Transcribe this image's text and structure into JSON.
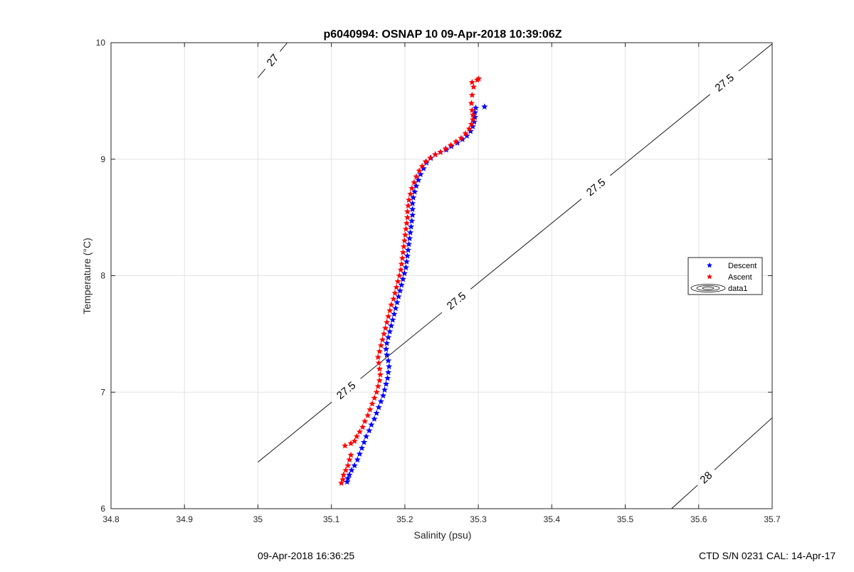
{
  "chart_data": {
    "type": "scatter",
    "title": "p6040994: OSNAP 10 09-Apr-2018 10:39:06Z",
    "xlabel": "Salinity (psu)",
    "ylabel": "Temperature (°C)",
    "xlim": [
      34.8,
      35.7
    ],
    "ylim": [
      6,
      10
    ],
    "xticks": [
      34.8,
      34.9,
      35,
      35.1,
      35.2,
      35.3,
      35.4,
      35.5,
      35.6,
      35.7
    ],
    "yticks": [
      6,
      7,
      8,
      9,
      10
    ],
    "grid": true,
    "legend_position": "right",
    "series": [
      {
        "name": "Descent",
        "color": "#0000ff",
        "marker": "pentagram",
        "points": [
          [
            35.12,
            6.23
          ],
          [
            35.121,
            6.26
          ],
          [
            35.123,
            6.29
          ],
          [
            35.126,
            6.33
          ],
          [
            35.13,
            6.37
          ],
          [
            35.134,
            6.42
          ],
          [
            35.137,
            6.47
          ],
          [
            35.14,
            6.52
          ],
          [
            35.143,
            6.57
          ],
          [
            35.146,
            6.62
          ],
          [
            35.15,
            6.67
          ],
          [
            35.153,
            6.72
          ],
          [
            35.157,
            6.77
          ],
          [
            35.16,
            6.82
          ],
          [
            35.163,
            6.87
          ],
          [
            35.166,
            6.92
          ],
          [
            35.169,
            6.97
          ],
          [
            35.171,
            7.02
          ],
          [
            35.173,
            7.07
          ],
          [
            35.175,
            7.12
          ],
          [
            35.176,
            7.17
          ],
          [
            35.177,
            7.22
          ],
          [
            35.176,
            7.27
          ],
          [
            35.174,
            7.32
          ],
          [
            35.173,
            7.37
          ],
          [
            35.174,
            7.42
          ],
          [
            35.176,
            7.47
          ],
          [
            35.178,
            7.52
          ],
          [
            35.18,
            7.57
          ],
          [
            35.182,
            7.62
          ],
          [
            35.184,
            7.67
          ],
          [
            35.186,
            7.72
          ],
          [
            35.188,
            7.77
          ],
          [
            35.19,
            7.82
          ],
          [
            35.192,
            7.87
          ],
          [
            35.194,
            7.92
          ],
          [
            35.196,
            7.97
          ],
          [
            35.198,
            8.02
          ],
          [
            35.2,
            8.07
          ],
          [
            35.201,
            8.12
          ],
          [
            35.202,
            8.17
          ],
          [
            35.203,
            8.22
          ],
          [
            35.204,
            8.27
          ],
          [
            35.205,
            8.32
          ],
          [
            35.206,
            8.37
          ],
          [
            35.207,
            8.42
          ],
          [
            35.208,
            8.47
          ],
          [
            35.209,
            8.52
          ],
          [
            35.209,
            8.57
          ],
          [
            35.209,
            8.62
          ],
          [
            35.21,
            8.67
          ],
          [
            35.212,
            8.72
          ],
          [
            35.214,
            8.77
          ],
          [
            35.217,
            8.82
          ],
          [
            35.22,
            8.87
          ],
          [
            35.224,
            8.92
          ],
          [
            35.228,
            8.97
          ],
          [
            35.234,
            9.01
          ],
          [
            35.24,
            9.04
          ],
          [
            35.247,
            9.06
          ],
          [
            35.255,
            9.08
          ],
          [
            35.262,
            9.11
          ],
          [
            35.27,
            9.14
          ],
          [
            35.277,
            9.17
          ],
          [
            35.283,
            9.2
          ],
          [
            35.288,
            9.24
          ],
          [
            35.291,
            9.28
          ],
          [
            35.293,
            9.32
          ],
          [
            35.294,
            9.36
          ],
          [
            35.294,
            9.4
          ],
          [
            35.295,
            9.44
          ],
          [
            35.307,
            9.45
          ]
        ]
      },
      {
        "name": "Ascent",
        "color": "#ff0000",
        "marker": "pentagram",
        "points": [
          [
            35.115,
            6.22
          ],
          [
            35.117,
            6.25
          ],
          [
            35.118,
            6.29
          ],
          [
            35.121,
            6.33
          ],
          [
            35.124,
            6.37
          ],
          [
            35.126,
            6.42
          ],
          [
            35.128,
            6.46
          ],
          [
            35.12,
            6.54
          ],
          [
            35.128,
            6.56
          ],
          [
            35.133,
            6.58
          ],
          [
            35.136,
            6.62
          ],
          [
            35.14,
            6.66
          ],
          [
            35.144,
            6.7
          ],
          [
            35.147,
            6.75
          ],
          [
            35.151,
            6.8
          ],
          [
            35.154,
            6.85
          ],
          [
            35.157,
            6.9
          ],
          [
            35.16,
            6.95
          ],
          [
            35.163,
            7.0
          ],
          [
            35.165,
            7.05
          ],
          [
            35.167,
            7.1
          ],
          [
            35.168,
            7.15
          ],
          [
            35.167,
            7.2
          ],
          [
            35.166,
            7.25
          ],
          [
            35.165,
            7.3
          ],
          [
            35.167,
            7.35
          ],
          [
            35.169,
            7.4
          ],
          [
            35.171,
            7.45
          ],
          [
            35.173,
            7.5
          ],
          [
            35.175,
            7.55
          ],
          [
            35.177,
            7.6
          ],
          [
            35.179,
            7.65
          ],
          [
            35.181,
            7.7
          ],
          [
            35.183,
            7.75
          ],
          [
            35.186,
            7.8
          ],
          [
            35.188,
            7.85
          ],
          [
            35.19,
            7.9
          ],
          [
            35.192,
            7.95
          ],
          [
            35.194,
            8.0
          ],
          [
            35.196,
            8.05
          ],
          [
            35.197,
            8.1
          ],
          [
            35.198,
            8.15
          ],
          [
            35.199,
            8.2
          ],
          [
            35.2,
            8.25
          ],
          [
            35.201,
            8.3
          ],
          [
            35.202,
            8.35
          ],
          [
            35.203,
            8.4
          ],
          [
            35.204,
            8.45
          ],
          [
            35.205,
            8.5
          ],
          [
            35.205,
            8.55
          ],
          [
            35.206,
            8.6
          ],
          [
            35.207,
            8.65
          ],
          [
            35.209,
            8.7
          ],
          [
            35.211,
            8.75
          ],
          [
            35.214,
            8.8
          ],
          [
            35.217,
            8.85
          ],
          [
            35.221,
            8.9
          ],
          [
            35.225,
            8.94
          ],
          [
            35.23,
            8.98
          ],
          [
            35.236,
            9.01
          ],
          [
            35.243,
            9.04
          ],
          [
            35.25,
            9.06
          ],
          [
            35.257,
            9.09
          ],
          [
            35.264,
            9.12
          ],
          [
            35.271,
            9.15
          ],
          [
            35.278,
            9.18
          ],
          [
            35.284,
            9.22
          ],
          [
            35.289,
            9.26
          ],
          [
            35.292,
            9.3
          ],
          [
            35.294,
            9.34
          ],
          [
            35.294,
            9.38
          ],
          [
            35.293,
            9.42
          ],
          [
            35.292,
            9.48
          ],
          [
            35.293,
            9.55
          ],
          [
            35.295,
            9.62
          ],
          [
            35.293,
            9.66
          ],
          [
            35.3,
            9.68
          ],
          [
            35.302,
            9.69
          ]
        ]
      }
    ],
    "contours": [
      {
        "label": "27",
        "points": [
          [
            35.0,
            9.7
          ],
          [
            35.04,
            10.0
          ]
        ],
        "label_positions": [
          [
            35.02,
            9.84
          ]
        ]
      },
      {
        "label": "27.5",
        "points": [
          [
            35.0,
            6.4
          ],
          [
            35.7,
            9.99
          ]
        ],
        "label_positions": [
          [
            35.12,
            7.02
          ],
          [
            35.27,
            7.82
          ],
          [
            35.46,
            8.84
          ],
          [
            35.635,
            9.74
          ]
        ]
      },
      {
        "label": "28",
        "points": [
          [
            35.563,
            6.0
          ],
          [
            35.7,
            6.78
          ]
        ],
        "label_positions": [
          [
            35.61,
            6.27
          ]
        ]
      }
    ],
    "legend_entries": [
      "Descent",
      "Ascent",
      "data1"
    ]
  },
  "footer": {
    "timestamp": "09-Apr-2018 16:36:25",
    "instrument": "CTD S/N 0231  CAL: 14-Apr-17"
  }
}
